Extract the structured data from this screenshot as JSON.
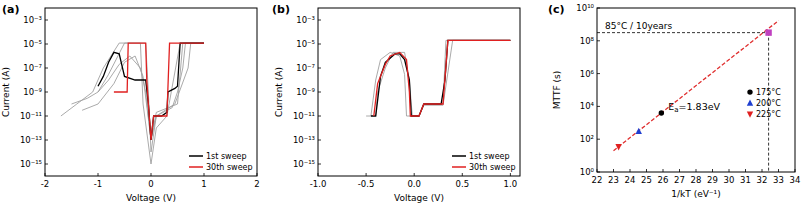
{
  "chart_data": [
    {
      "type": "line",
      "title": "(a)",
      "x_label": "Voltage (V)",
      "y_label": "Current (A)",
      "log": "y",
      "xlim": [
        -2,
        2
      ],
      "xticks": [
        -2,
        -1,
        0,
        1,
        2
      ],
      "ylim": [
        1e-16,
        0.01
      ],
      "yticks": [
        {
          "value": 0.001,
          "label": "10⁻³"
        },
        {
          "value": 1e-05,
          "label": "10⁻⁵"
        },
        {
          "value": 1e-07,
          "label": "10⁻⁷"
        },
        {
          "value": 1e-09,
          "label": "10⁻⁹"
        },
        {
          "value": 1e-11,
          "label": "10⁻¹¹"
        },
        {
          "value": 1e-13,
          "label": "10⁻¹³"
        },
        {
          "value": 1e-15,
          "label": "10⁻¹⁵"
        }
      ],
      "legend": "lower right",
      "series": [
        {
          "color": "#a0a0a0",
          "x": [
            -1.5,
            -1.2,
            -1.0,
            -0.8,
            -0.6,
            -0.4,
            -0.2,
            -0.1,
            0,
            0.1,
            0.4,
            0.5,
            0.6,
            0.65,
            1.0
          ],
          "values": [
            1e-10,
            3e-10,
            1e-09,
            1e-08,
            2e-07,
            1e-06,
            1e-07,
            1e-09,
            1e-13,
            1e-11,
            5e-11,
            1e-09,
            1e-07,
            1.2e-05,
            1.2e-05
          ]
        },
        {
          "color": "#a0a0a0",
          "x": [
            -1.3,
            -1.0,
            -0.7,
            -0.5,
            -0.3,
            -0.15,
            0,
            0.1,
            0.5,
            0.6,
            1.0
          ],
          "values": [
            3e-11,
            1e-10,
            5e-09,
            3e-07,
            1e-06,
            2e-08,
            1e-13,
            2e-11,
            1e-10,
            1.2e-05,
            1.2e-05
          ]
        },
        {
          "color": "#a0a0a0",
          "x": [
            -1.7,
            -1.4,
            -1.1,
            -0.9,
            -0.6,
            -0.1,
            -0.05,
            0,
            0.1,
            0.45,
            0.7,
            0.75,
            1.0
          ],
          "values": [
            1e-11,
            1e-10,
            1e-09,
            1e-07,
            1.2e-05,
            1.2e-05,
            1e-09,
            1e-14,
            1e-11,
            1e-10,
            1e-07,
            1.2e-05,
            1.2e-05
          ]
        },
        {
          "color": "#a0a0a0",
          "x": [
            -1.0,
            -0.8,
            -0.5,
            -0.2,
            -0.15,
            0,
            0.1,
            0.3,
            0.55,
            1.0
          ],
          "values": [
            1e-09,
            3e-08,
            1.2e-05,
            1.2e-05,
            1e-10,
            1e-15,
            1e-12,
            1e-11,
            1.2e-05,
            1.2e-05
          ]
        },
        {
          "name": "1st sweep",
          "color": "#000000",
          "x": [
            -1.0,
            -0.9,
            -0.8,
            -0.7,
            -0.6,
            -0.5,
            -0.3,
            -0.1,
            -0.05,
            0,
            0.05,
            0.2,
            0.3,
            0.32,
            0.45,
            0.5,
            0.55,
            1.0
          ],
          "values": [
            3e-09,
            2e-08,
            3e-07,
            2e-06,
            1.5e-06,
            2e-08,
            1e-08,
            1e-08,
            1e-10,
            1e-13,
            1e-11,
            1e-11,
            2e-11,
            1e-09,
            2e-09,
            3e-09,
            1.2e-05,
            1.2e-05
          ]
        },
        {
          "name": "30th sweep",
          "color": "#e02020",
          "x": [
            -0.7,
            -0.45,
            -0.43,
            -0.1,
            -0.08,
            -0.05,
            0,
            0.05,
            0.3,
            0.35,
            1.0
          ],
          "values": [
            1e-09,
            1e-09,
            1.2e-05,
            1.2e-05,
            1e-08,
            1e-10,
            1e-13,
            1e-11,
            1e-11,
            1.2e-05,
            1.2e-05
          ]
        }
      ]
    },
    {
      "type": "line",
      "title": "(b)",
      "x_label": "Voltage (V)",
      "y_label": "Current (A)",
      "log": "y",
      "xlim": [
        -1.0,
        1.1
      ],
      "xticks": [
        {
          "value": -1.0,
          "label": "-1.0"
        },
        {
          "value": -0.5,
          "label": "-0.5"
        },
        {
          "value": 0,
          "label": "0.0"
        },
        {
          "value": 0.5,
          "label": "0.5"
        },
        {
          "value": 1.0,
          "label": "1.0"
        }
      ],
      "ylim": [
        1e-16,
        0.01
      ],
      "yticks": [
        {
          "value": 0.001,
          "label": "10⁻³"
        },
        {
          "value": 1e-05,
          "label": "10⁻⁵"
        },
        {
          "value": 1e-07,
          "label": "10⁻⁷"
        },
        {
          "value": 1e-09,
          "label": "10⁻⁹"
        },
        {
          "value": 1e-11,
          "label": "10⁻¹¹"
        },
        {
          "value": 1e-13,
          "label": "10⁻¹³"
        },
        {
          "value": 1e-15,
          "label": "10⁻¹⁵"
        }
      ],
      "legend": "lower right",
      "series": [
        {
          "color": "#a0a0a0",
          "x": [
            -0.5,
            -0.45,
            -0.4,
            -0.35,
            -0.25,
            -0.15,
            -0.1,
            -0.08,
            0.05,
            0.1,
            0.3,
            0.33,
            1.0
          ],
          "values": [
            1e-11,
            1e-11,
            1e-08,
            5e-07,
            2e-06,
            1e-06,
            3e-08,
            1e-11,
            1e-11,
            1e-10,
            1e-10,
            2e-05,
            2e-05
          ]
        },
        {
          "color": "#a0a0a0",
          "x": [
            -0.4,
            -0.38,
            -0.3,
            -0.22,
            -0.1,
            -0.05,
            -0.02,
            0.05,
            0.1,
            0.3,
            0.4,
            1.0
          ],
          "values": [
            1e-11,
            1e-09,
            1e-07,
            2e-06,
            2e-06,
            1e-08,
            1e-11,
            1e-11,
            8e-11,
            8e-11,
            2e-05,
            2e-05
          ]
        },
        {
          "name": "1st sweep",
          "color": "#000000",
          "x": [
            -0.45,
            -0.4,
            -0.35,
            -0.3,
            -0.2,
            -0.15,
            -0.1,
            -0.05,
            -0.03,
            0.05,
            0.1,
            0.28,
            0.32,
            0.35,
            1.0
          ],
          "values": [
            1e-11,
            1e-11,
            2e-08,
            3e-07,
            1.5e-06,
            1.5e-06,
            5e-07,
            1e-08,
            1e-11,
            1e-11,
            1e-10,
            1e-10,
            1e-08,
            2e-05,
            2e-05
          ]
        },
        {
          "name": "30th sweep",
          "color": "#e02020",
          "x": [
            -0.42,
            -0.38,
            -0.3,
            -0.25,
            -0.15,
            -0.08,
            -0.05,
            -0.04,
            0.05,
            0.1,
            0.3,
            0.35,
            1.0
          ],
          "values": [
            1e-11,
            5e-09,
            2e-07,
            1e-06,
            2e-06,
            5e-07,
            1e-09,
            1e-11,
            1e-11,
            1e-10,
            1e-10,
            2e-05,
            2e-05
          ]
        }
      ]
    },
    {
      "type": "scatter",
      "title": "(c)",
      "x_label": "1/kT (eV⁻¹)",
      "y_label": "MTTF (s)",
      "log": "y",
      "xlim": [
        22,
        34
      ],
      "xticks": [
        22,
        23,
        24,
        25,
        26,
        27,
        28,
        29,
        30,
        31,
        32,
        33,
        34
      ],
      "ylim": [
        1,
        10000000000.0
      ],
      "yticks": [
        {
          "value": 1,
          "label": "10⁰"
        },
        {
          "value": 100,
          "label": "10²"
        },
        {
          "value": 10000,
          "label": "10⁴"
        },
        {
          "value": 1000000,
          "label": "10⁶"
        },
        {
          "value": 100000000,
          "label": "10⁸"
        },
        {
          "value": 10000000000,
          "label": "10¹⁰"
        }
      ],
      "legend": "right",
      "hline": 315000000,
      "vline": 32.4,
      "hline_label": "85°C / 10years",
      "fit_label": {
        "main": "E",
        "subscript": "a",
        "after": "=1.83eV"
      },
      "series": [
        {
          "type": "line",
          "line_style": "dashed",
          "color": "#e03030",
          "x": [
            23.0,
            33.0
          ],
          "values": [
            20,
            1700000000
          ]
        },
        {
          "name": "175°C",
          "color": "#000000",
          "marker": "circle",
          "x": [
            25.9
          ],
          "values": [
            4000
          ]
        },
        {
          "name": "200°C",
          "color": "#1f3fd0",
          "marker": "triangle-up",
          "x": [
            24.53
          ],
          "values": [
            300
          ]
        },
        {
          "name": "225°C",
          "color": "#e02020",
          "marker": "triangle-down",
          "x": [
            23.31
          ],
          "values": [
            35
          ]
        },
        {
          "color": "#c040c0",
          "marker": "square",
          "x": [
            32.4
          ],
          "values": [
            315000000
          ]
        }
      ]
    }
  ]
}
